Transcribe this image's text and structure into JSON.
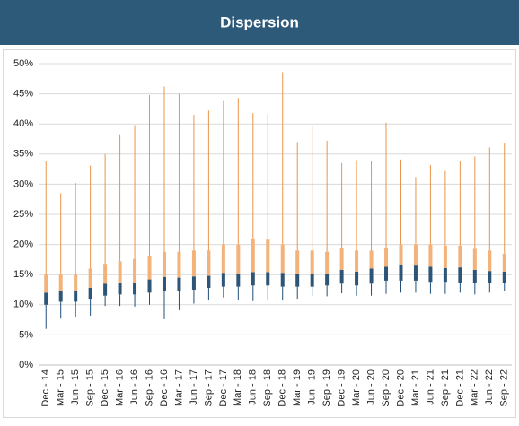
{
  "chart_data": {
    "type": "dispersion",
    "title": "Dispersion",
    "categories": [
      "Dec - 14",
      "Mar - 15",
      "Jun - 15",
      "Sep - 15",
      "Dec - 15",
      "Mar - 16",
      "Jun - 16",
      "Sep - 16",
      "Dec - 16",
      "Mar - 17",
      "Jun - 17",
      "Sep - 17",
      "Dec - 17",
      "Mar - 18",
      "Jun - 18",
      "Sep - 18",
      "Dec - 18",
      "Mar - 19",
      "Jun - 19",
      "Sep - 19",
      "Dec - 19",
      "Mar - 20",
      "Jun - 20",
      "Sep - 20",
      "Dec - 20",
      "Mar - 21",
      "Jun - 21",
      "Sep - 21",
      "Dec - 21",
      "Mar - 22",
      "Jun - 22",
      "Sep - 22"
    ],
    "min": [
      6,
      7.7,
      8,
      8.2,
      9.8,
      9.8,
      9.7,
      10,
      7.6,
      9.1,
      10.2,
      10.8,
      11.2,
      10.8,
      10.6,
      10.8,
      10.7,
      11,
      11.5,
      11.4,
      11.9,
      11.5,
      11.5,
      11.8,
      12,
      12,
      11.8,
      11.8,
      12,
      11.7,
      12,
      12.2
    ],
    "q1": [
      10,
      10.5,
      10.5,
      11,
      11.5,
      11.7,
      11.7,
      12,
      12.2,
      12.3,
      12.5,
      12.8,
      13,
      13,
      13.2,
      13.2,
      13,
      13,
      13,
      13.2,
      13.5,
      13.2,
      13.5,
      14,
      14,
      14,
      13.8,
      13.8,
      13.7,
      13.6,
      13.6,
      13.6
    ],
    "median": [
      12,
      12.3,
      12.3,
      12.8,
      13.5,
      13.7,
      13.7,
      14.2,
      14.6,
      14.5,
      14.7,
      14.8,
      15.3,
      15.2,
      15.4,
      15.4,
      15.3,
      15.1,
      15.1,
      15.1,
      15.8,
      15.5,
      16,
      16.3,
      16.7,
      16.5,
      16.3,
      16.1,
      16.2,
      15.8,
      15.6,
      15.5
    ],
    "q3": [
      15,
      15,
      15,
      16,
      16.8,
      17.2,
      17.6,
      18,
      18.8,
      18.8,
      19,
      19,
      20,
      20,
      21,
      20.8,
      20,
      19,
      19,
      18.8,
      19.5,
      19,
      19,
      19.5,
      20,
      20,
      20,
      19.8,
      19.8,
      19.3,
      19,
      18.5
    ],
    "max": [
      33.8,
      28.5,
      30.2,
      33.1,
      35,
      38.3,
      39.8,
      44.8,
      46.2,
      45,
      41.5,
      42.2,
      43.8,
      44.3,
      41.8,
      41.6,
      48.6,
      37,
      39.8,
      37.2,
      33.5,
      34,
      33.8,
      40.2,
      34.1,
      31.2,
      33.2,
      32.2,
      33.8,
      34.6,
      36.1,
      36.9
    ],
    "lower_color": "#2d5577",
    "upper_color": "#f2b27a",
    "upper_whisker_color": "#e8954a",
    "lower_whisker_color": "#1f4e79",
    "ylim": [
      0,
      50
    ],
    "yticks": [
      {
        "value": 0,
        "label": "0%"
      },
      {
        "value": 5,
        "label": "5%"
      },
      {
        "value": 10,
        "label": "10%"
      },
      {
        "value": 15,
        "label": "15%"
      },
      {
        "value": 20,
        "label": "20%"
      },
      {
        "value": 25,
        "label": "25%"
      },
      {
        "value": 30,
        "label": "30%"
      },
      {
        "value": 35,
        "label": "35%"
      },
      {
        "value": 40,
        "label": "40%"
      },
      {
        "value": 45,
        "label": "45%"
      },
      {
        "value": 50,
        "label": "50%"
      }
    ],
    "grid": true
  }
}
